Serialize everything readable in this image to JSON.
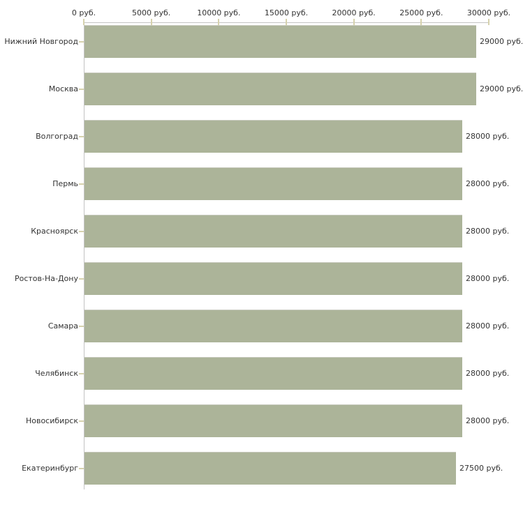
{
  "chart_data": {
    "type": "bar",
    "orientation": "horizontal",
    "title": "",
    "unit": "руб.",
    "categories": [
      "Нижний Новгород",
      "Москва",
      "Волгоград",
      "Пермь",
      "Красноярск",
      "Ростов-На-Дону",
      "Самара",
      "Челябинск",
      "Новосибирск",
      "Екатеринбург"
    ],
    "values": [
      29000,
      29000,
      28000,
      28000,
      28000,
      28000,
      28000,
      28000,
      28000,
      27500
    ],
    "value_labels": [
      "29000 руб.",
      "29000 руб.",
      "28000 руб.",
      "28000 руб.",
      "28000 руб.",
      "28000 руб.",
      "28000 руб.",
      "28000 руб.",
      "28000 руб.",
      "27500 руб."
    ],
    "x_axis": {
      "position": "top",
      "ticks": [
        0,
        5000,
        10000,
        15000,
        20000,
        25000,
        30000
      ],
      "tick_labels": [
        "0 руб.",
        "5000 руб.",
        "10000 руб.",
        "15000 руб.",
        "20000 руб.",
        "25000 руб.",
        "30000 руб."
      ]
    },
    "xlim": [
      0,
      30000
    ],
    "grid": false,
    "legend": null,
    "colors": {
      "bar": "#acb499",
      "bar_edge": "#c7c9bd",
      "axis_line": "#c3c3c3",
      "tick_mark": "#d6d2ad",
      "text": "#333333",
      "background": "#ffffff"
    }
  }
}
